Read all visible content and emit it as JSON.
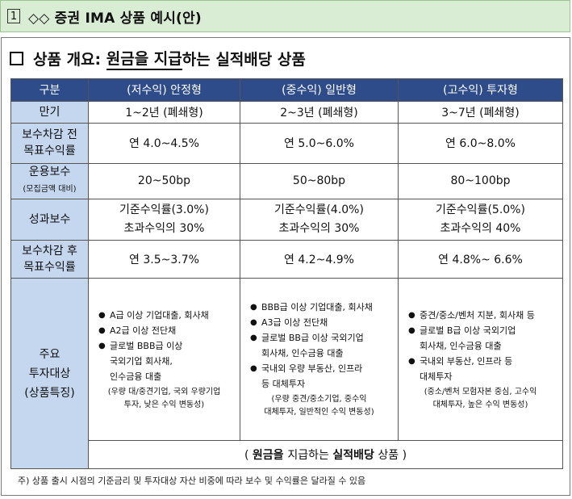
{
  "header": {
    "number": "1",
    "title": "◇◇ 증권 IMA 상품 예시(안)"
  },
  "section": {
    "prefix": "상품 개요: ",
    "underlined": "원금을 지급",
    "suffix": "하는 실적배당 상품"
  },
  "table": {
    "header": [
      "구분",
      "(저수익) 안정형",
      "(중수익) 일반형",
      "(고수익) 투자형"
    ],
    "rows": {
      "maturity": {
        "label": "만기",
        "values": [
          "1~2년 (폐쇄형)",
          "2~3년 (폐쇄형)",
          "3~7년 (폐쇄형)"
        ]
      },
      "target_before": {
        "label_1": "보수차감 전",
        "label_2": "목표수익률",
        "values": [
          "연 4.0~4.5%",
          "연 5.0~6.0%",
          "연 6.0~8.0%"
        ]
      },
      "mgmt_fee": {
        "label": "운용보수",
        "sublabel": "(모집금액 대비)",
        "values": [
          "20~50bp",
          "50~80bp",
          "80~100bp"
        ]
      },
      "perf_fee": {
        "label": "성과보수",
        "values": [
          {
            "line1": "기준수익률(3.0%)",
            "line2": "초과수익의 30%"
          },
          {
            "line1": "기준수익률(4.0%)",
            "line2": "초과수익의 30%"
          },
          {
            "line1": "기준수익률(5.0%)",
            "line2": "초과수익의 40%"
          }
        ]
      },
      "target_after": {
        "label_1": "보수차감 후",
        "label_2": "목표수익률",
        "values": [
          "연 3.5~3.7%",
          "연 4.2~4.9%",
          "연 4.8%~ 6.6%"
        ]
      },
      "targets": {
        "label_1": "주요",
        "label_2": "투자대상",
        "label_3": "(상품특징)",
        "col1": {
          "b1": "A급 이상 기업대출, 회사채",
          "b2": "A2급 이상 전단채",
          "b3_1": "글로벌 BBB급 이상",
          "b3_2": "국외기업 회사채,",
          "b3_3": "인수금융 대출",
          "note_1": "(우량 대/중견기업, 국외 우량기업",
          "note_2": "투자, 낮은 수익 변동성)"
        },
        "col2": {
          "b1": "BBB급 이상 기업대출, 회사채",
          "b2": "A3급 이상 전단채",
          "b3_1": "글로벌 BB급 이상 국외기업",
          "b3_2": "회사채, 인수금융 대출",
          "b4_1": "국내외 우량 부동산, 인프라",
          "b4_2": "등 대체투자",
          "note_1": "(우량 중견/중소기업, 중수익",
          "note_2": "대체투자, 일반적인 수익 변동성)"
        },
        "col3": {
          "b1": "중견/중소/벤처 지분, 회사채 등",
          "b2_1": "글로벌 B급 이상 국외기업",
          "b2_2": "회사채, 인수금융 대출",
          "b3_1": "국내외 부동산, 인프라 등",
          "b3_2": "대체투자",
          "note_1": "(중소/벤처 모험자본 중심, 고수익",
          "note_2": "대체투자, 높은 수익 변동성)"
        }
      },
      "summary": {
        "open": "( ",
        "bold1": "원금을 ",
        "normal": "지급하는 ",
        "bold2": "실적배당",
        "close": " 상품 )"
      }
    }
  },
  "footnote": "주) 상품 출시 시점의 기준금리 및 투자대상 자산 비중에 따라 보수 및 수익률은 달라질 수 있음"
}
